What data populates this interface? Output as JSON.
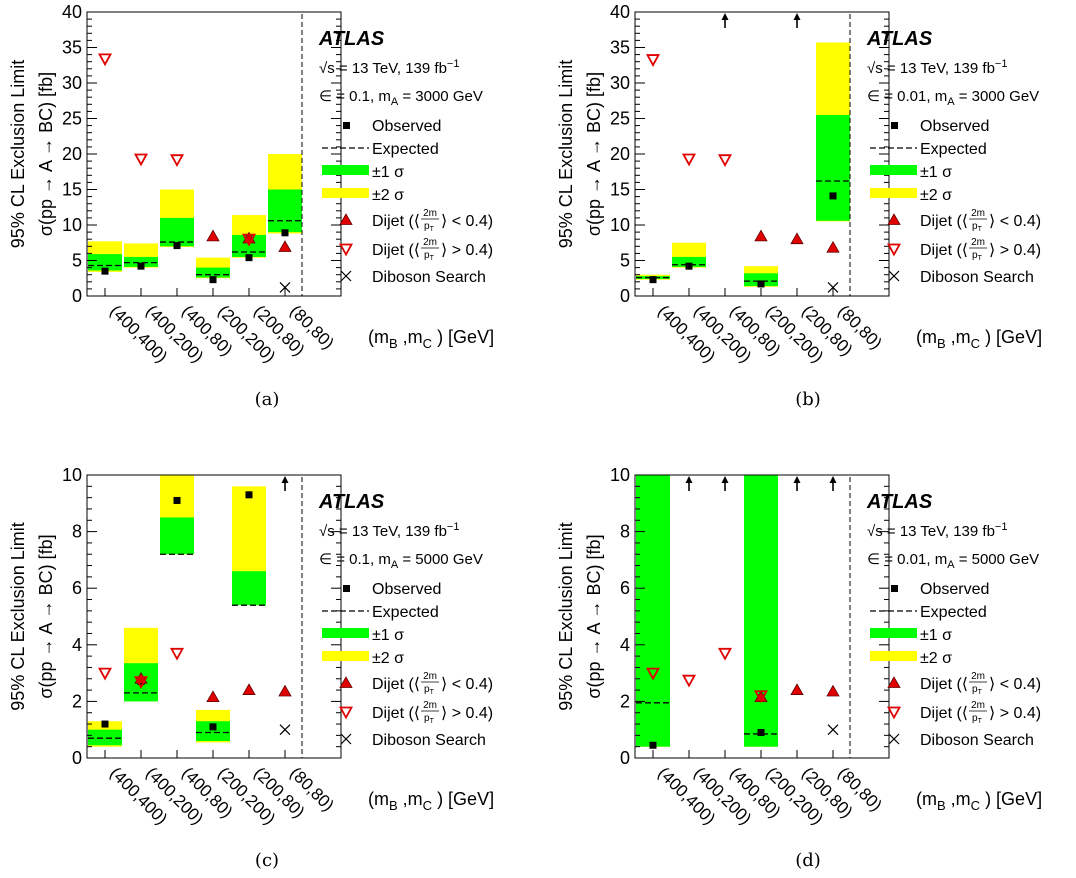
{
  "chart_data": [
    {
      "type": "scatter",
      "panel_label": "(a)",
      "atlas_label": "ATLAS",
      "energy_label": "√s = 13 TeV, 139 fb",
      "energy_sup": "−1",
      "param_label": "∈ = 0.1, m",
      "param_sub": "A",
      "param_value": " = 3000 GeV",
      "ylabel_line1": "95% CL Exclusion Limit",
      "ylabel_line2": "σ(pp → A → BC) [fb]",
      "xlabel": "(m",
      "xlabel_mid": " ,m",
      "xlabel_end": " ) [GeV]",
      "ylim": [
        0,
        40
      ],
      "yticks": [
        0,
        5,
        10,
        15,
        20,
        25,
        30,
        35,
        40
      ],
      "categories": [
        "(400,400)",
        "(400,200)",
        "(400,80)",
        "(200,200)",
        "(200,80)",
        "(80,80)"
      ],
      "observed": [
        3.5,
        4.2,
        7.1,
        2.3,
        5.4,
        8.9
      ],
      "expected": [
        4.3,
        4.7,
        7.6,
        3.0,
        6.2,
        10.6
      ],
      "band1": [
        [
          3.6,
          5.9
        ],
        [
          4.1,
          5.5
        ],
        [
          7.0,
          11.0
        ],
        [
          2.6,
          4.0
        ],
        [
          5.5,
          8.6
        ],
        [
          9.0,
          15.0
        ]
      ],
      "band2": [
        [
          3.4,
          7.7
        ],
        [
          4.0,
          7.4
        ],
        [
          6.9,
          15.0
        ],
        [
          2.5,
          5.4
        ],
        [
          5.4,
          11.4
        ],
        [
          8.8,
          20.0
        ]
      ],
      "dijet_low": [
        null,
        null,
        null,
        8.4,
        8.1,
        6.9
      ],
      "dijet_high": [
        33.4,
        19.3,
        19.2,
        null,
        8.0,
        null
      ],
      "diboson": [
        null,
        null,
        null,
        null,
        null,
        1.2
      ],
      "arrows": []
    },
    {
      "type": "scatter",
      "panel_label": "(b)",
      "atlas_label": "ATLAS",
      "energy_label": "√s = 13 TeV, 139 fb",
      "energy_sup": "−1",
      "param_label": "∈ = 0.01, m",
      "param_sub": "A",
      "param_value": " = 3000 GeV",
      "ylabel_line1": "95% CL Exclusion Limit",
      "ylabel_line2": "σ(pp → A → BC) [fb]",
      "xlabel": "(m",
      "xlabel_mid": " ,m",
      "xlabel_end": " ) [GeV]",
      "ylim": [
        0,
        40
      ],
      "yticks": [
        0,
        5,
        10,
        15,
        20,
        25,
        30,
        35,
        40
      ],
      "categories": [
        "(400,400)",
        "(400,200)",
        "(400,80)",
        "(200,200)",
        "(200,80)",
        "(80,80)"
      ],
      "observed": [
        2.3,
        4.2,
        null,
        1.7,
        null,
        14.1
      ],
      "expected": [
        2.6,
        4.4,
        null,
        2.1,
        null,
        16.2
      ],
      "band1": [
        [
          2.4,
          2.8
        ],
        [
          4.1,
          5.5
        ],
        null,
        [
          1.4,
          3.2
        ],
        null,
        [
          10.6,
          25.5
        ]
      ],
      "band2": [
        [
          2.3,
          3.0
        ],
        [
          4.0,
          7.5
        ],
        null,
        [
          1.3,
          4.2
        ],
        null,
        [
          10.5,
          35.7
        ]
      ],
      "dijet_low": [
        null,
        null,
        null,
        8.4,
        8.0,
        6.8
      ],
      "dijet_high": [
        33.3,
        19.3,
        19.2,
        null,
        null,
        null
      ],
      "diboson": [
        null,
        null,
        null,
        null,
        null,
        1.2
      ],
      "arrows": [
        false,
        false,
        true,
        false,
        true,
        false
      ]
    },
    {
      "type": "scatter",
      "panel_label": "(c)",
      "atlas_label": "ATLAS",
      "energy_label": "√s = 13 TeV, 139 fb",
      "energy_sup": "−1",
      "param_label": "∈ = 0.1, m",
      "param_sub": "A",
      "param_value": " = 5000 GeV",
      "ylabel_line1": "95% CL Exclusion Limit",
      "ylabel_line2": "σ(pp → A → BC) [fb]",
      "xlabel": "(m",
      "xlabel_mid": " ,m",
      "xlabel_end": " ) [GeV]",
      "ylim": [
        0,
        10
      ],
      "yticks": [
        0,
        2,
        4,
        6,
        8,
        10
      ],
      "categories": [
        "(400,400)",
        "(400,200)",
        "(400,80)",
        "(200,200)",
        "(200,80)",
        "(80,80)"
      ],
      "observed": [
        1.2,
        2.7,
        9.1,
        1.1,
        9.3,
        null
      ],
      "expected": [
        0.7,
        2.3,
        7.2,
        0.9,
        5.4,
        null
      ],
      "band1": [
        [
          0.45,
          1.0
        ],
        [
          2.0,
          3.35
        ],
        [
          7.2,
          8.5
        ],
        [
          0.6,
          1.3
        ],
        [
          5.4,
          6.6
        ],
        null
      ],
      "band2": [
        [
          0.4,
          1.3
        ],
        [
          2.0,
          4.6
        ],
        [
          7.2,
          10.0
        ],
        [
          0.55,
          1.7
        ],
        [
          5.4,
          9.6
        ],
        null
      ],
      "dijet_low": [
        null,
        2.8,
        null,
        2.15,
        2.4,
        2.35
      ],
      "dijet_high": [
        3.0,
        2.7,
        3.7,
        null,
        null,
        null
      ],
      "diboson": [
        null,
        null,
        null,
        null,
        null,
        1.0
      ],
      "arrows": [
        false,
        false,
        false,
        false,
        false,
        true
      ]
    },
    {
      "type": "scatter",
      "panel_label": "(d)",
      "atlas_label": "ATLAS",
      "energy_label": "√s = 13 TeV, 139 fb",
      "energy_sup": "−1",
      "param_label": "∈ = 0.01, m",
      "param_sub": "A",
      "param_value": " = 5000 GeV",
      "ylabel_line1": "95% CL Exclusion Limit",
      "ylabel_line2": "σ(pp → A → BC) [fb]",
      "xlabel": "(m",
      "xlabel_mid": " ,m",
      "xlabel_end": " ) [GeV]",
      "ylim": [
        0,
        10
      ],
      "yticks": [
        0,
        2,
        4,
        6,
        8,
        10
      ],
      "categories": [
        "(400,400)",
        "(400,200)",
        "(400,80)",
        "(200,200)",
        "(200,80)",
        "(80,80)"
      ],
      "observed": [
        0.45,
        null,
        null,
        0.9,
        null,
        null
      ],
      "expected": [
        1.95,
        null,
        null,
        0.85,
        null,
        null
      ],
      "band1": [
        [
          0.4,
          10.0
        ],
        null,
        null,
        [
          0.4,
          10.0
        ],
        null,
        null
      ],
      "band2": [
        [
          0.4,
          10.0
        ],
        null,
        null,
        [
          0.4,
          10.0
        ],
        null,
        null
      ],
      "dijet_low": [
        null,
        null,
        null,
        2.15,
        2.4,
        2.35
      ],
      "dijet_high": [
        3.0,
        2.75,
        3.7,
        2.2,
        null,
        null
      ],
      "diboson": [
        null,
        null,
        null,
        null,
        null,
        1.0
      ],
      "arrows": [
        false,
        true,
        true,
        false,
        true,
        true
      ]
    }
  ],
  "legend": {
    "observed": "Observed",
    "expected": "Expected",
    "sigma1": "±1 σ",
    "sigma2": "±2 σ",
    "dijet_low_prefix": "Dijet (⟨",
    "dijet_low_suffix": "⟩ < 0.4)",
    "dijet_high_prefix": "Dijet (⟨",
    "dijet_high_suffix": "⟩ > 0.4)",
    "frac_num": "2m",
    "frac_den": "p",
    "frac_den_sub": "T",
    "diboson": "Diboson Search"
  },
  "colors": {
    "band1": "#00ff00",
    "band2": "#ffff00",
    "marker_dijet": "#e00000",
    "marker_black": "#000000"
  }
}
